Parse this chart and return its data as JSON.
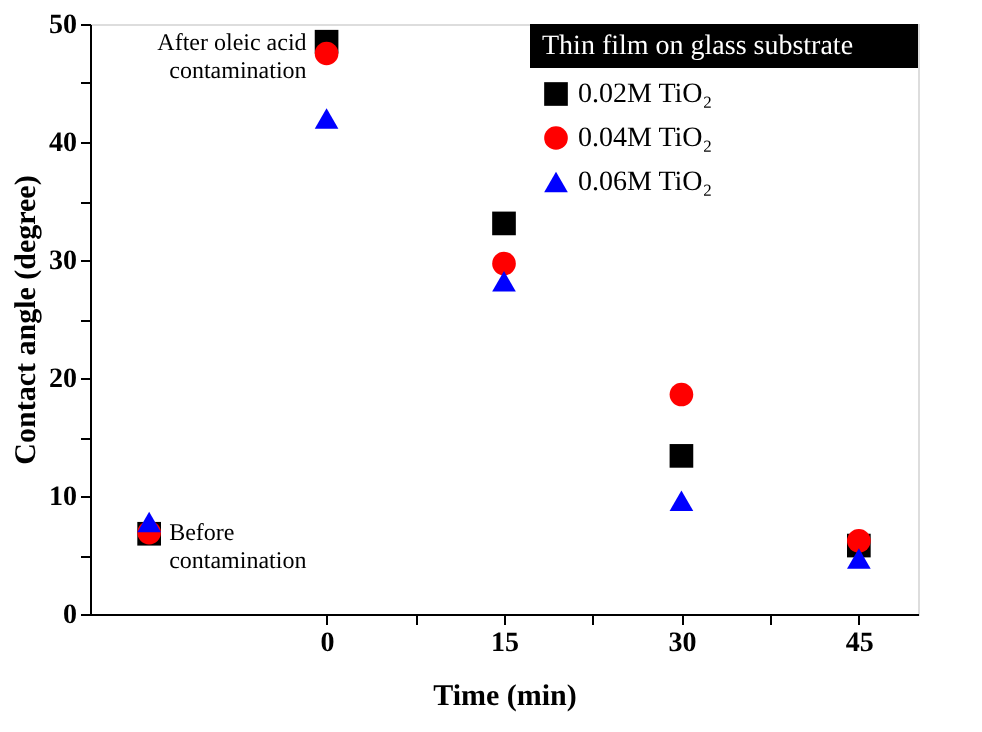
{
  "chart_data": {
    "type": "scatter",
    "xlabel": "Time (min)",
    "ylabel": "Contact angle (degree)",
    "legend_title": "Thin film on glass substrate",
    "x": [
      -15,
      0,
      15,
      30,
      45
    ],
    "series": [
      {
        "name": "0.02M TiO₂",
        "color": "#000000",
        "marker": "square",
        "values": [
          6.8,
          48.5,
          33.1,
          13.4,
          5.8
        ]
      },
      {
        "name": "0.04M TiO₂",
        "color": "#ff0000",
        "marker": "circle",
        "values": [
          6.9,
          47.5,
          29.7,
          18.6,
          6.2
        ]
      },
      {
        "name": "0.06M TiO₂",
        "color": "#0000ff",
        "marker": "triangle",
        "values": [
          7.8,
          42.0,
          28.2,
          9.6,
          4.7
        ]
      }
    ],
    "xlim": [
      -20,
      50
    ],
    "xticks": [
      0,
      {
        "value": 7.5,
        "label": null
      },
      15,
      {
        "value": 22.5,
        "label": null
      },
      30,
      {
        "value": 37.5,
        "label": null
      },
      45
    ],
    "ylim": [
      0,
      50
    ],
    "yticks": [
      0,
      {
        "value": 5,
        "label": null
      },
      10,
      {
        "value": 15,
        "label": null
      },
      20,
      {
        "value": 25,
        "label": null
      },
      30,
      {
        "value": 35,
        "label": null
      },
      40,
      {
        "value": 45,
        "label": null
      },
      50
    ],
    "annotations": [
      {
        "text": "After oleic acid\ncontamination",
        "x": 0,
        "y": 48.5
      },
      {
        "text": "Before\ncontamination",
        "x": -15,
        "y": 7.8
      }
    ],
    "grid": false,
    "legend": "top right"
  }
}
